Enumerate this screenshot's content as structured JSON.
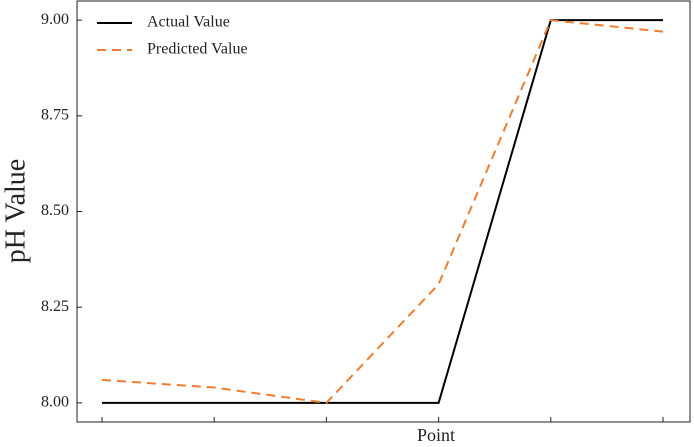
{
  "chart_data": {
    "type": "line",
    "xlabel": "Point",
    "ylabel": "pH Value",
    "categories": [
      null,
      null,
      null,
      null,
      null,
      null
    ],
    "series": [
      {
        "name": "Actual Value",
        "color": "#000000",
        "dash": "solid",
        "values": [
          8.0,
          8.0,
          8.0,
          8.0,
          9.0,
          9.0
        ]
      },
      {
        "name": "Predicted Value",
        "color": "#ed7d31",
        "dash": "dashed",
        "values": [
          8.06,
          8.04,
          8.0,
          8.31,
          9.0,
          8.97
        ]
      }
    ],
    "ylim": [
      7.95,
      9.05
    ],
    "yticks": [
      {
        "value": 8.0,
        "label": "8.00"
      },
      {
        "value": 8.25,
        "label": "8.25"
      },
      {
        "value": 8.5,
        "label": "8.50"
      },
      {
        "value": 8.75,
        "label": "8.75"
      },
      {
        "value": 9.0,
        "label": "9.00"
      }
    ],
    "legend": "upper left",
    "grid": false
  }
}
